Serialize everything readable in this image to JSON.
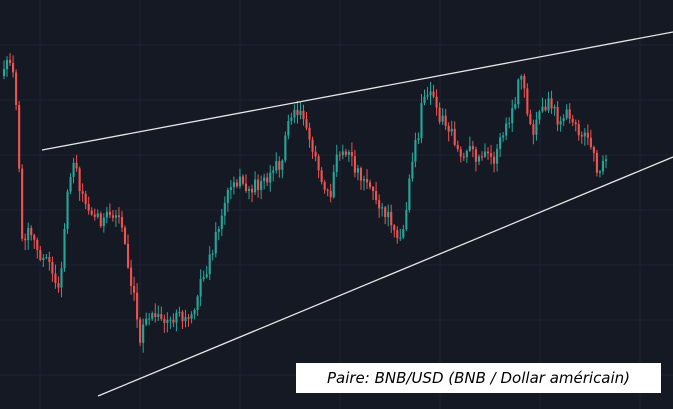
{
  "chart_data": {
    "type": "candlestick",
    "pattern": "expanding wedge (broadening formation)",
    "colors": {
      "background": "#151924",
      "grid": "#1f2331",
      "up": "#26a69a",
      "down": "#ef5350",
      "trendline": "#e6e6e6"
    },
    "grid": true,
    "legend": "none",
    "trendlines": [
      {
        "name": "upper-resistance"
      },
      {
        "name": "lower-support"
      }
    ],
    "ohlc_count": 200
  },
  "caption": {
    "text": "Paire: BNB/USD (BNB / Dollar américain)"
  }
}
